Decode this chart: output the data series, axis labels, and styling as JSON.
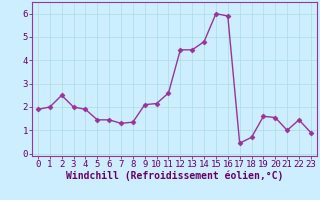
{
  "x": [
    0,
    1,
    2,
    3,
    4,
    5,
    6,
    7,
    8,
    9,
    10,
    11,
    12,
    13,
    14,
    15,
    16,
    17,
    18,
    19,
    20,
    21,
    22,
    23
  ],
  "y": [
    1.9,
    2.0,
    2.5,
    2.0,
    1.9,
    1.45,
    1.45,
    1.3,
    1.35,
    2.1,
    2.15,
    2.6,
    4.45,
    4.45,
    4.8,
    6.0,
    5.9,
    0.45,
    0.7,
    1.6,
    1.55,
    1.0,
    1.45,
    0.9
  ],
  "line_color": "#993399",
  "marker": "D",
  "marker_size": 2.5,
  "bg_color": "#cceeff",
  "grid_color": "#aadddd",
  "xlabel": "Windchill (Refroidissement éolien,°C)",
  "ylabel": "",
  "ylim": [
    -0.1,
    6.5
  ],
  "xlim": [
    -0.5,
    23.5
  ],
  "xticks": [
    0,
    1,
    2,
    3,
    4,
    5,
    6,
    7,
    8,
    9,
    10,
    11,
    12,
    13,
    14,
    15,
    16,
    17,
    18,
    19,
    20,
    21,
    22,
    23
  ],
  "yticks": [
    0,
    1,
    2,
    3,
    4,
    5,
    6
  ],
  "tick_label_fontsize": 6.5,
  "xlabel_fontsize": 7,
  "linewidth": 1.0,
  "label_color": "#660066",
  "spine_color": "#993399"
}
